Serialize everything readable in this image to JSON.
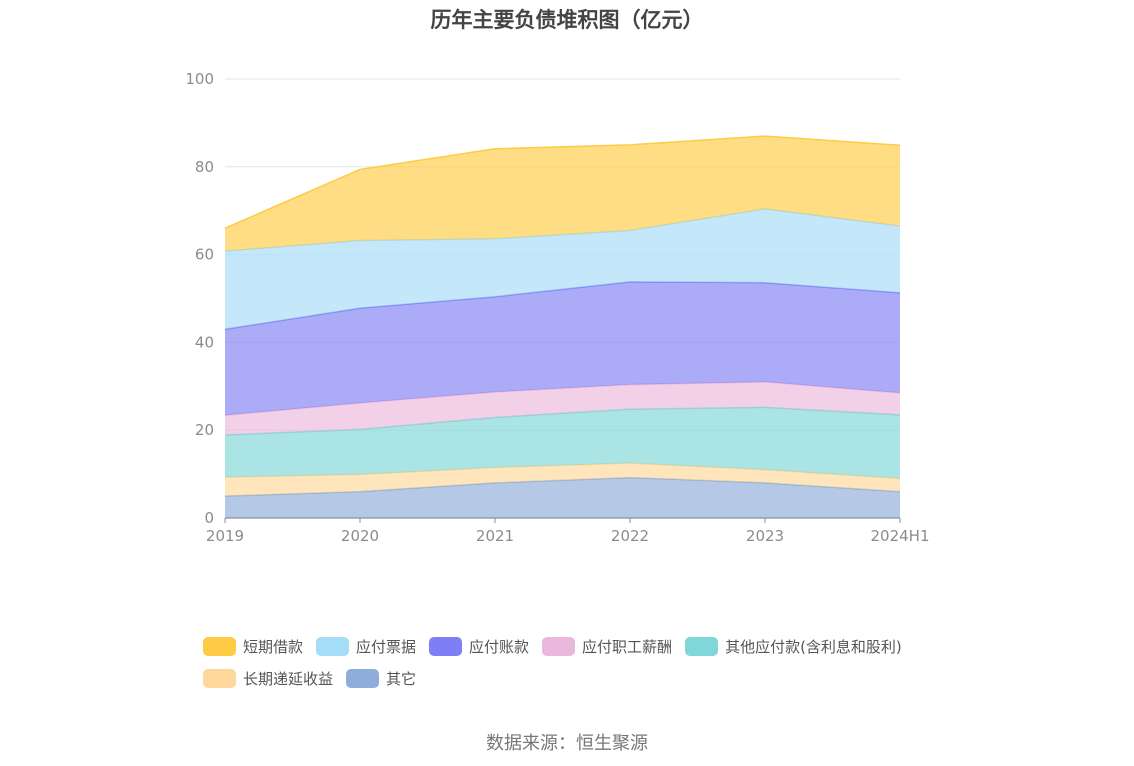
{
  "title": "历年主要负债堆积图（亿元）",
  "source": "数据来源：恒生聚源",
  "chart_data": {
    "type": "area",
    "stacked": true,
    "title": "历年主要负债堆积图（亿元）",
    "x": [
      "2019",
      "2020",
      "2021",
      "2022",
      "2023",
      "2024H1"
    ],
    "ylim": [
      0,
      100
    ],
    "yticks": [
      0,
      20,
      40,
      60,
      80,
      100
    ],
    "grid": true,
    "legend_position": "bottom",
    "series": [
      {
        "name": "其它",
        "color": "#8eaddb",
        "values": [
          5,
          6,
          8,
          9.2,
          8,
          6
        ]
      },
      {
        "name": "长期递延收益",
        "color": "#fdd89a",
        "values": [
          4.3,
          3.9,
          3.5,
          3.3,
          3,
          3
        ]
      },
      {
        "name": "其他应付款(含利息和股利)",
        "color": "#80d6d8",
        "values": [
          9.6,
          10.3,
          11.4,
          12.3,
          14.2,
          14.5
        ]
      },
      {
        "name": "应付职工薪酬",
        "color": "#e9b8dc",
        "values": [
          4.5,
          6,
          5.8,
          5.6,
          5.8,
          5
        ]
      },
      {
        "name": "应付账款",
        "color": "#7f7ff5",
        "values": [
          19.6,
          21.6,
          21.7,
          23.4,
          22.6,
          22.8
        ]
      },
      {
        "name": "应付票据",
        "color": "#a5dcf7",
        "values": [
          17.8,
          15.4,
          13.2,
          11.7,
          16.8,
          15.2
        ]
      },
      {
        "name": "短期借款",
        "color": "#fecb45",
        "values": [
          5.2,
          16.2,
          20.5,
          19.5,
          16.6,
          18.4
        ]
      }
    ]
  },
  "legend": [
    {
      "name": "短期借款",
      "color": "#fecb45"
    },
    {
      "name": "应付票据",
      "color": "#a5dcf7"
    },
    {
      "name": "应付账款",
      "color": "#7f7ff5"
    },
    {
      "name": "应付职工薪酬",
      "color": "#e9b8dc"
    },
    {
      "name": "其他应付款(含利息和股利)",
      "color": "#80d6d8"
    },
    {
      "name": "长期递延收益",
      "color": "#fdd89a"
    },
    {
      "name": "其它",
      "color": "#8eaddb"
    }
  ]
}
